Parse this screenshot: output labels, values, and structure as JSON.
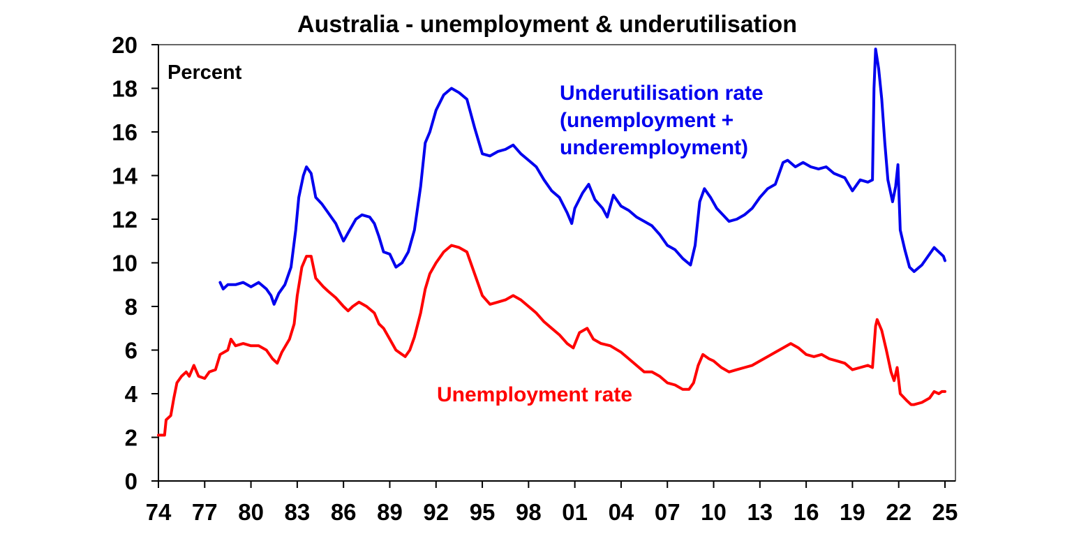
{
  "chart_data": {
    "type": "line",
    "title": "Australia - unemployment & underutilisation",
    "ylabel": "Percent",
    "xlabel": "",
    "xlim": [
      1974,
      2025.25
    ],
    "ylim": [
      0,
      20
    ],
    "x_ticks": [
      "74",
      "77",
      "80",
      "83",
      "86",
      "89",
      "92",
      "95",
      "98",
      "01",
      "04",
      "07",
      "10",
      "13",
      "16",
      "19",
      "22",
      "25"
    ],
    "y_ticks": [
      "0",
      "2",
      "4",
      "6",
      "8",
      "10",
      "12",
      "14",
      "16",
      "18",
      "20"
    ],
    "grid": false,
    "legend": "none",
    "annotations": {
      "underutilisation": [
        "Underutilisation rate",
        "(unemployment +",
        "underemployment)"
      ],
      "unemployment": [
        "Unemployment rate"
      ]
    },
    "series": [
      {
        "name": "Unemployment rate",
        "color": "#ff0000",
        "points": [
          [
            1974.0,
            2.1
          ],
          [
            1974.4,
            2.1
          ],
          [
            1974.5,
            2.8
          ],
          [
            1974.8,
            3.0
          ],
          [
            1975.0,
            3.8
          ],
          [
            1975.2,
            4.5
          ],
          [
            1975.5,
            4.8
          ],
          [
            1975.8,
            5.0
          ],
          [
            1976.0,
            4.8
          ],
          [
            1976.3,
            5.3
          ],
          [
            1976.6,
            4.8
          ],
          [
            1977.0,
            4.7
          ],
          [
            1977.3,
            5.0
          ],
          [
            1977.7,
            5.1
          ],
          [
            1978.0,
            5.8
          ],
          [
            1978.5,
            6.0
          ],
          [
            1978.7,
            6.5
          ],
          [
            1979.0,
            6.2
          ],
          [
            1979.5,
            6.3
          ],
          [
            1980.0,
            6.2
          ],
          [
            1980.5,
            6.2
          ],
          [
            1981.0,
            6.0
          ],
          [
            1981.4,
            5.6
          ],
          [
            1981.7,
            5.4
          ],
          [
            1982.0,
            5.9
          ],
          [
            1982.5,
            6.5
          ],
          [
            1982.8,
            7.2
          ],
          [
            1983.0,
            8.5
          ],
          [
            1983.3,
            9.8
          ],
          [
            1983.6,
            10.3
          ],
          [
            1983.9,
            10.3
          ],
          [
            1984.2,
            9.3
          ],
          [
            1984.7,
            8.9
          ],
          [
            1985.0,
            8.7
          ],
          [
            1985.5,
            8.4
          ],
          [
            1986.0,
            8.0
          ],
          [
            1986.3,
            7.8
          ],
          [
            1986.6,
            8.0
          ],
          [
            1987.0,
            8.2
          ],
          [
            1987.5,
            8.0
          ],
          [
            1988.0,
            7.7
          ],
          [
            1988.3,
            7.2
          ],
          [
            1988.6,
            7.0
          ],
          [
            1989.0,
            6.5
          ],
          [
            1989.4,
            6.0
          ],
          [
            1989.8,
            5.8
          ],
          [
            1990.0,
            5.7
          ],
          [
            1990.3,
            6.0
          ],
          [
            1990.6,
            6.6
          ],
          [
            1991.0,
            7.7
          ],
          [
            1991.3,
            8.8
          ],
          [
            1991.6,
            9.5
          ],
          [
            1992.0,
            10.0
          ],
          [
            1992.5,
            10.5
          ],
          [
            1993.0,
            10.8
          ],
          [
            1993.5,
            10.7
          ],
          [
            1994.0,
            10.5
          ],
          [
            1994.5,
            9.5
          ],
          [
            1995.0,
            8.5
          ],
          [
            1995.5,
            8.1
          ],
          [
            1996.0,
            8.2
          ],
          [
            1996.5,
            8.3
          ],
          [
            1997.0,
            8.5
          ],
          [
            1997.5,
            8.3
          ],
          [
            1998.0,
            8.0
          ],
          [
            1998.5,
            7.7
          ],
          [
            1999.0,
            7.3
          ],
          [
            1999.5,
            7.0
          ],
          [
            2000.0,
            6.7
          ],
          [
            2000.5,
            6.3
          ],
          [
            2000.9,
            6.1
          ],
          [
            2001.3,
            6.8
          ],
          [
            2001.8,
            7.0
          ],
          [
            2002.2,
            6.5
          ],
          [
            2002.7,
            6.3
          ],
          [
            2003.3,
            6.2
          ],
          [
            2004.0,
            5.9
          ],
          [
            2004.5,
            5.6
          ],
          [
            2005.0,
            5.3
          ],
          [
            2005.5,
            5.0
          ],
          [
            2006.0,
            5.0
          ],
          [
            2006.5,
            4.8
          ],
          [
            2007.0,
            4.5
          ],
          [
            2007.5,
            4.4
          ],
          [
            2008.0,
            4.2
          ],
          [
            2008.4,
            4.2
          ],
          [
            2008.7,
            4.5
          ],
          [
            2009.0,
            5.3
          ],
          [
            2009.3,
            5.8
          ],
          [
            2009.7,
            5.6
          ],
          [
            2010.0,
            5.5
          ],
          [
            2010.5,
            5.2
          ],
          [
            2011.0,
            5.0
          ],
          [
            2011.5,
            5.1
          ],
          [
            2012.0,
            5.2
          ],
          [
            2012.5,
            5.3
          ],
          [
            2013.0,
            5.5
          ],
          [
            2013.5,
            5.7
          ],
          [
            2014.0,
            5.9
          ],
          [
            2014.5,
            6.1
          ],
          [
            2015.0,
            6.3
          ],
          [
            2015.5,
            6.1
          ],
          [
            2016.0,
            5.8
          ],
          [
            2016.5,
            5.7
          ],
          [
            2017.0,
            5.8
          ],
          [
            2017.5,
            5.6
          ],
          [
            2018.0,
            5.5
          ],
          [
            2018.5,
            5.4
          ],
          [
            2019.0,
            5.1
          ],
          [
            2019.5,
            5.2
          ],
          [
            2020.0,
            5.3
          ],
          [
            2020.3,
            5.2
          ],
          [
            2020.5,
            7.1
          ],
          [
            2020.6,
            7.4
          ],
          [
            2020.9,
            6.9
          ],
          [
            2021.2,
            6.0
          ],
          [
            2021.5,
            5.0
          ],
          [
            2021.7,
            4.6
          ],
          [
            2021.9,
            5.2
          ],
          [
            2022.1,
            4.0
          ],
          [
            2022.5,
            3.7
          ],
          [
            2022.8,
            3.5
          ],
          [
            2023.0,
            3.5
          ],
          [
            2023.5,
            3.6
          ],
          [
            2024.0,
            3.8
          ],
          [
            2024.3,
            4.1
          ],
          [
            2024.6,
            4.0
          ],
          [
            2024.8,
            4.1
          ],
          [
            2025.0,
            4.1
          ]
        ]
      },
      {
        "name": "Underutilisation rate (unemployment + underemployment)",
        "color": "#0000ee",
        "points": [
          [
            1978.0,
            9.1
          ],
          [
            1978.2,
            8.8
          ],
          [
            1978.5,
            9.0
          ],
          [
            1979.0,
            9.0
          ],
          [
            1979.5,
            9.1
          ],
          [
            1980.0,
            8.9
          ],
          [
            1980.5,
            9.1
          ],
          [
            1981.0,
            8.8
          ],
          [
            1981.3,
            8.5
          ],
          [
            1981.5,
            8.1
          ],
          [
            1981.8,
            8.6
          ],
          [
            1982.2,
            9.0
          ],
          [
            1982.6,
            9.8
          ],
          [
            1982.9,
            11.5
          ],
          [
            1983.1,
            13.0
          ],
          [
            1983.4,
            14.0
          ],
          [
            1983.6,
            14.4
          ],
          [
            1983.9,
            14.1
          ],
          [
            1984.2,
            13.0
          ],
          [
            1984.6,
            12.7
          ],
          [
            1985.0,
            12.3
          ],
          [
            1985.5,
            11.8
          ],
          [
            1986.0,
            11.0
          ],
          [
            1986.4,
            11.5
          ],
          [
            1986.8,
            12.0
          ],
          [
            1987.2,
            12.2
          ],
          [
            1987.7,
            12.1
          ],
          [
            1988.0,
            11.8
          ],
          [
            1988.3,
            11.2
          ],
          [
            1988.6,
            10.5
          ],
          [
            1989.0,
            10.4
          ],
          [
            1989.4,
            9.8
          ],
          [
            1989.8,
            10.0
          ],
          [
            1990.2,
            10.5
          ],
          [
            1990.6,
            11.5
          ],
          [
            1991.0,
            13.5
          ],
          [
            1991.3,
            15.5
          ],
          [
            1991.6,
            16.0
          ],
          [
            1992.0,
            17.0
          ],
          [
            1992.5,
            17.7
          ],
          [
            1993.0,
            18.0
          ],
          [
            1993.5,
            17.8
          ],
          [
            1994.0,
            17.5
          ],
          [
            1994.5,
            16.2
          ],
          [
            1995.0,
            15.0
          ],
          [
            1995.5,
            14.9
          ],
          [
            1996.0,
            15.1
          ],
          [
            1996.5,
            15.2
          ],
          [
            1997.0,
            15.4
          ],
          [
            1997.5,
            15.0
          ],
          [
            1998.0,
            14.7
          ],
          [
            1998.5,
            14.4
          ],
          [
            1999.0,
            13.8
          ],
          [
            1999.5,
            13.3
          ],
          [
            2000.0,
            13.0
          ],
          [
            2000.5,
            12.3
          ],
          [
            2000.8,
            11.8
          ],
          [
            2001.0,
            12.5
          ],
          [
            2001.5,
            13.2
          ],
          [
            2001.9,
            13.6
          ],
          [
            2002.3,
            12.9
          ],
          [
            2002.8,
            12.5
          ],
          [
            2003.1,
            12.1
          ],
          [
            2003.5,
            13.1
          ],
          [
            2004.0,
            12.6
          ],
          [
            2004.5,
            12.4
          ],
          [
            2005.0,
            12.1
          ],
          [
            2005.5,
            11.9
          ],
          [
            2006.0,
            11.7
          ],
          [
            2006.5,
            11.3
          ],
          [
            2007.0,
            10.8
          ],
          [
            2007.5,
            10.6
          ],
          [
            2008.0,
            10.2
          ],
          [
            2008.5,
            9.9
          ],
          [
            2008.8,
            10.8
          ],
          [
            2009.1,
            12.8
          ],
          [
            2009.4,
            13.4
          ],
          [
            2009.8,
            13.0
          ],
          [
            2010.2,
            12.5
          ],
          [
            2010.6,
            12.2
          ],
          [
            2011.0,
            11.9
          ],
          [
            2011.5,
            12.0
          ],
          [
            2012.0,
            12.2
          ],
          [
            2012.5,
            12.5
          ],
          [
            2013.0,
            13.0
          ],
          [
            2013.5,
            13.4
          ],
          [
            2014.0,
            13.6
          ],
          [
            2014.5,
            14.6
          ],
          [
            2014.8,
            14.7
          ],
          [
            2015.3,
            14.4
          ],
          [
            2015.8,
            14.6
          ],
          [
            2016.3,
            14.4
          ],
          [
            2016.8,
            14.3
          ],
          [
            2017.3,
            14.4
          ],
          [
            2017.8,
            14.1
          ],
          [
            2018.5,
            13.9
          ],
          [
            2019.0,
            13.3
          ],
          [
            2019.5,
            13.8
          ],
          [
            2020.0,
            13.7
          ],
          [
            2020.3,
            13.8
          ],
          [
            2020.4,
            18.0
          ],
          [
            2020.5,
            19.8
          ],
          [
            2020.7,
            18.9
          ],
          [
            2020.9,
            17.5
          ],
          [
            2021.1,
            15.5
          ],
          [
            2021.3,
            13.8
          ],
          [
            2021.6,
            12.8
          ],
          [
            2021.8,
            13.5
          ],
          [
            2021.95,
            14.5
          ],
          [
            2022.1,
            11.5
          ],
          [
            2022.4,
            10.6
          ],
          [
            2022.7,
            9.8
          ],
          [
            2023.0,
            9.6
          ],
          [
            2023.5,
            9.9
          ],
          [
            2024.0,
            10.4
          ],
          [
            2024.3,
            10.7
          ],
          [
            2024.6,
            10.5
          ],
          [
            2024.9,
            10.3
          ],
          [
            2025.0,
            10.1
          ]
        ]
      }
    ]
  }
}
